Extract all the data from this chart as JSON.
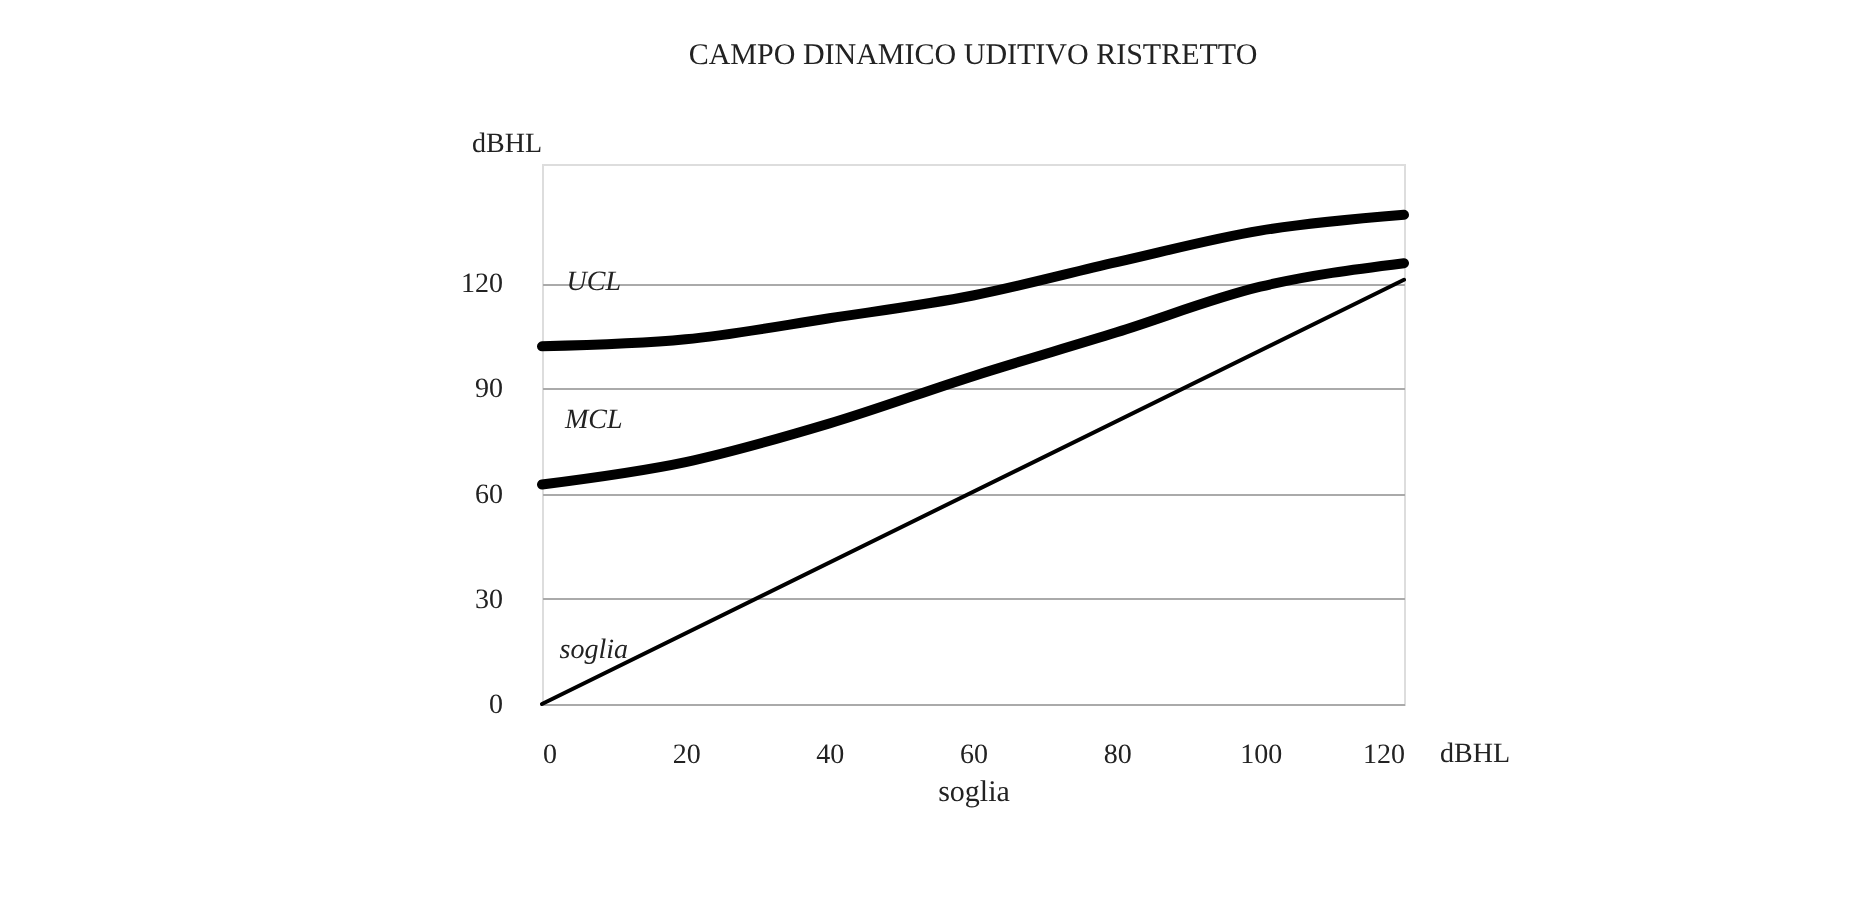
{
  "chart_data": {
    "type": "line",
    "title": "CAMPO DINAMICO UDITIVO RISTRETTO",
    "ylabel": "dBHL",
    "xlabel": "soglia",
    "xlim": [
      0,
      120
    ],
    "xticks": [
      0,
      20,
      40,
      60,
      80,
      100,
      120
    ],
    "annotations": [
      "dBHL"
    ],
    "ylim": [
      0,
      154
    ],
    "yticks": [
      0,
      30,
      60,
      90,
      120
    ],
    "grid": "y",
    "marker": "none",
    "line_style": "solid",
    "series": [
      {
        "name": "UCL",
        "color": "#000000",
        "x": [
          0,
          20,
          40,
          60,
          80,
          100,
          120
        ],
        "values": [
          102,
          104,
          110,
          116.5,
          126,
          135,
          139.5
        ]
      },
      {
        "name": "MCL",
        "color": "#000000",
        "x": [
          0,
          20,
          40,
          60,
          80,
          100,
          120
        ],
        "values": [
          62.6,
          69,
          80,
          93.5,
          106,
          119,
          125.7
        ]
      },
      {
        "name": "soglia",
        "color": "#000000",
        "x": [
          0,
          120
        ],
        "values": [
          0,
          121
        ]
      }
    ]
  }
}
